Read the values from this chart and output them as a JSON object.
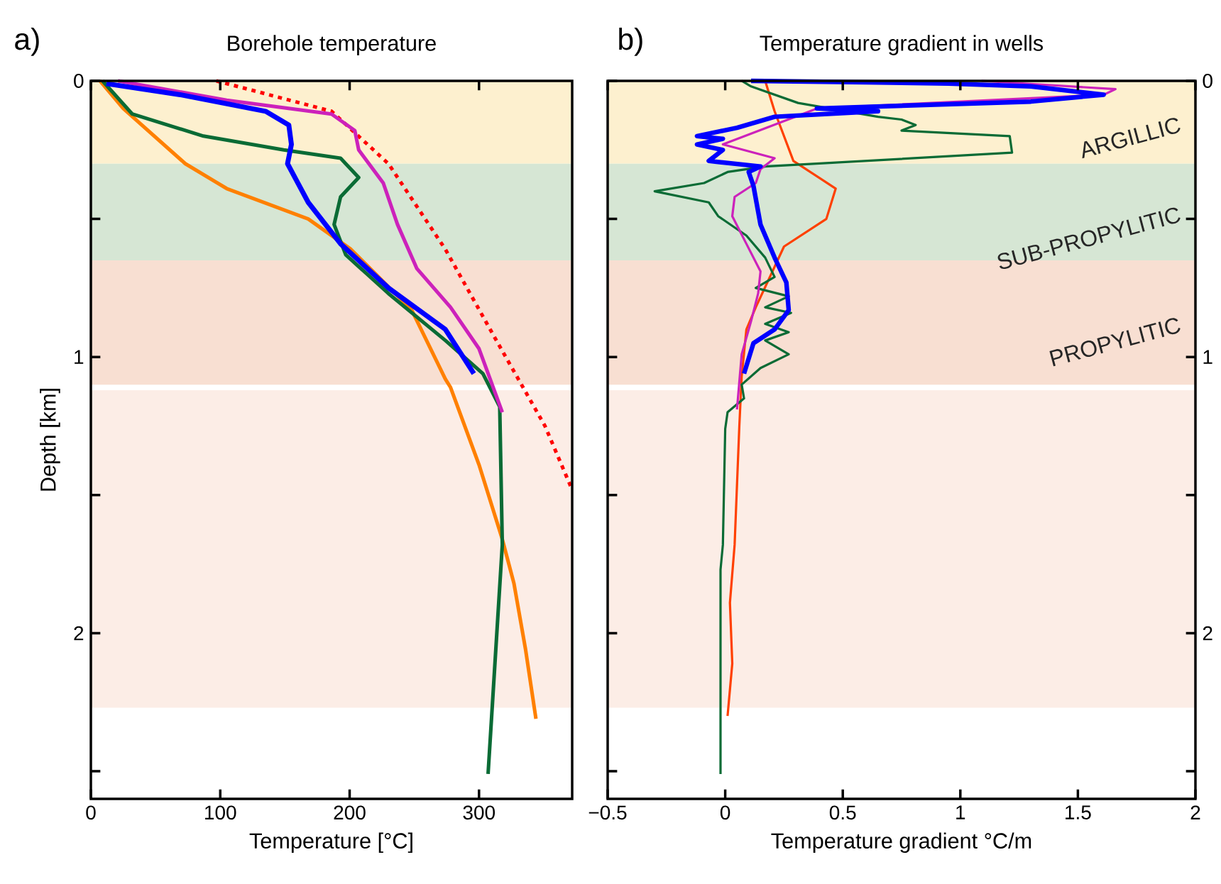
{
  "chart_data": [
    {
      "type": "line",
      "title": "Borehole temperature",
      "xlabel": "Temperature [°C]",
      "ylabel": "Depth [km]",
      "annotations": [
        "a)"
      ],
      "xlim": [
        0,
        372
      ],
      "ylim": [
        2.6,
        0
      ],
      "xticks": [
        0,
        100,
        200,
        300
      ],
      "yticks": [
        0,
        {
          "value": 0.5,
          "label": null
        },
        1,
        {
          "value": 1.5,
          "label": null
        },
        2,
        {
          "value": 2.5,
          "label": null
        }
      ],
      "bands": [
        {
          "axis": "y",
          "from": 0,
          "to": 0.3,
          "color": "#fdf0cf"
        },
        {
          "axis": "y",
          "from": 0.3,
          "to": 0.65,
          "color": "#d6e6d4"
        },
        {
          "axis": "y",
          "from": 0.65,
          "to": 1.1,
          "color": "#f8dfd2"
        },
        {
          "axis": "y",
          "from": 1.12,
          "to": 2.27,
          "color": "#fcede6"
        }
      ],
      "series": [
        {
          "color": "#0000ff",
          "x": [
            12,
            69,
            135,
            153,
            155,
            152,
            168,
            193,
            230,
            274,
            296
          ],
          "values": [
            0.01,
            0.05,
            0.11,
            0.16,
            0.23,
            0.3,
            0.44,
            0.59,
            0.75,
            0.9,
            1.06
          ]
        },
        {
          "color": "#cc22bb",
          "x": [
            21,
            105,
            186,
            204,
            207,
            226,
            237,
            252,
            278,
            300,
            318
          ],
          "values": [
            0,
            0.07,
            0.12,
            0.18,
            0.25,
            0.37,
            0.52,
            0.68,
            0.82,
            0.97,
            1.2
          ]
        },
        {
          "color": "#0a6b35",
          "x": [
            9,
            32,
            87,
            149,
            193,
            207,
            193,
            188,
            197,
            230,
            274,
            303,
            316,
            318,
            307
          ],
          "values": [
            0,
            0.12,
            0.2,
            0.25,
            0.28,
            0.35,
            0.42,
            0.52,
            0.63,
            0.77,
            0.94,
            1.06,
            1.18,
            1.68,
            2.51
          ]
        },
        {
          "color": "#ff8000",
          "x": [
            7,
            25,
            73,
            105,
            168,
            201,
            248,
            274,
            278,
            300,
            318,
            327,
            336,
            344
          ],
          "values": [
            0,
            0.1,
            0.3,
            0.39,
            0.5,
            0.61,
            0.83,
            1.08,
            1.11,
            1.39,
            1.66,
            1.82,
            2.06,
            2.31
          ]
        },
        {
          "color": "#ff0000",
          "line_style": "dotted",
          "x": [
            97,
            186,
            230,
            274,
            311,
            351,
            371
          ],
          "values": [
            0,
            0.11,
            0.3,
            0.61,
            0.92,
            1.25,
            1.47
          ]
        }
      ]
    },
    {
      "type": "line",
      "title": "Temperature gradient in wells",
      "xlabel": "Temperature gradient °C/m",
      "annotations": [
        "b)"
      ],
      "xlim": [
        -0.5,
        2
      ],
      "ylim": [
        2.6,
        0
      ],
      "xticks": [
        {
          "value": -0.5,
          "label": "−0.5"
        },
        0,
        0.5,
        1,
        1.5,
        2
      ],
      "yticks": [
        0,
        {
          "value": 0.5,
          "label": null
        },
        1,
        {
          "value": 1.5,
          "label": null
        },
        2,
        {
          "value": 2.5,
          "label": null
        }
      ],
      "bands": [
        {
          "axis": "y",
          "from": 0,
          "to": 0.3,
          "color": "#fdf0cf",
          "label": "ARGILLIC"
        },
        {
          "axis": "y",
          "from": 0.3,
          "to": 0.65,
          "color": "#d6e6d4",
          "label": "SUB-PROPYLITIC"
        },
        {
          "axis": "y",
          "from": 0.65,
          "to": 1.1,
          "color": "#f8dfd2",
          "label": "PROPYLITIC"
        },
        {
          "axis": "y",
          "from": 1.12,
          "to": 2.27,
          "color": "#fcede6"
        }
      ],
      "series": [
        {
          "color": "#0000ff",
          "x": [
            0.11,
            0.6,
            0.95,
            1.3,
            1.61,
            1.3,
            0.39,
            0.65,
            0.21,
            0.05,
            -0.12,
            -0.01,
            -0.12,
            -0.01,
            -0.07,
            0.15,
            0.1,
            0.12,
            0.15,
            0.21,
            0.26,
            0.27,
            0.21,
            0.12,
            0.08
          ],
          "values": [
            0,
            0.005,
            0.01,
            0.02,
            0.05,
            0.075,
            0.1,
            0.11,
            0.13,
            0.17,
            0.2,
            0.21,
            0.23,
            0.25,
            0.29,
            0.31,
            0.33,
            0.38,
            0.52,
            0.64,
            0.73,
            0.83,
            0.9,
            0.95,
            1.06
          ]
        },
        {
          "color": "#cc22bb",
          "x": [
            1.09,
            1.66,
            1.61,
            0.39,
            -0.01,
            0.21,
            0.15,
            0.13,
            0.04,
            0.03,
            0.09,
            0.15,
            0.14,
            0.11,
            0.07,
            0.05
          ],
          "values": [
            0,
            0.03,
            0.05,
            0.1,
            0.23,
            0.28,
            0.32,
            0.37,
            0.42,
            0.49,
            0.59,
            0.69,
            0.77,
            0.87,
            0.99,
            1.19
          ]
        },
        {
          "color": "#0a6b35",
          "x": [
            0.07,
            0.11,
            0.31,
            0.65,
            0.75,
            0.81,
            0.75,
            1.21,
            1.22,
            0.17,
            0.01,
            -0.09,
            -0.3,
            -0.07,
            -0.03,
            0.09,
            0.17,
            0.21,
            0.13,
            0.27,
            0.17,
            0.28,
            0.17,
            0.27,
            0.17,
            0.27,
            0.15,
            0.07,
            0.08,
            0.01,
            0,
            -0.01,
            -0.02,
            -0.02
          ],
          "values": [
            0,
            0.02,
            0.08,
            0.13,
            0.14,
            0.16,
            0.18,
            0.2,
            0.26,
            0.31,
            0.33,
            0.37,
            0.4,
            0.44,
            0.49,
            0.56,
            0.64,
            0.71,
            0.75,
            0.78,
            0.82,
            0.84,
            0.88,
            0.91,
            0.94,
            0.99,
            1.04,
            1.1,
            1.15,
            1.2,
            1.26,
            1.68,
            1.77,
            2.51
          ]
        },
        {
          "color": "#ff4000",
          "x": [
            0.17,
            0.21,
            0.29,
            0.47,
            0.43,
            0.25,
            0.13,
            0.09,
            0.07,
            0.06,
            0.04,
            0.02,
            0.03,
            0.01
          ],
          "values": [
            0,
            0.11,
            0.29,
            0.39,
            0.5,
            0.6,
            0.82,
            0.9,
            1.07,
            1.25,
            1.68,
            1.89,
            2.11,
            2.3
          ]
        }
      ]
    }
  ]
}
